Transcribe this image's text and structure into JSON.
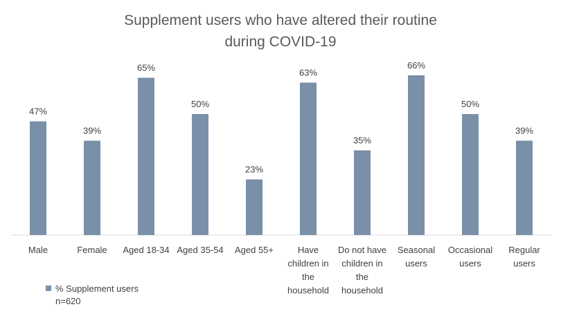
{
  "chart_data": {
    "type": "bar",
    "title_lines": [
      "Supplement users who have altered their routine",
      "during COVID-19"
    ],
    "categories": [
      [
        "Male"
      ],
      [
        "Female"
      ],
      [
        "Aged 18-34"
      ],
      [
        "Aged 35-54"
      ],
      [
        "Aged 55+"
      ],
      [
        "Have",
        "children in",
        "the",
        "household"
      ],
      [
        "Do not have",
        "children in",
        "the",
        "household"
      ],
      [
        "Seasonal",
        "users"
      ],
      [
        "Occasional",
        "users"
      ],
      [
        "Regular",
        "users"
      ]
    ],
    "series": [
      {
        "name": "% Supplement users n=620",
        "values": [
          47,
          39,
          65,
          50,
          23,
          63,
          35,
          66,
          50,
          39
        ],
        "labels": [
          "47%",
          "39%",
          "65%",
          "50%",
          "23%",
          "63%",
          "35%",
          "66%",
          "50%",
          "39%"
        ],
        "color": "#7a8fa8"
      }
    ],
    "ylim": [
      0,
      70
    ],
    "grid": false,
    "legend_position": "bottom-left"
  }
}
